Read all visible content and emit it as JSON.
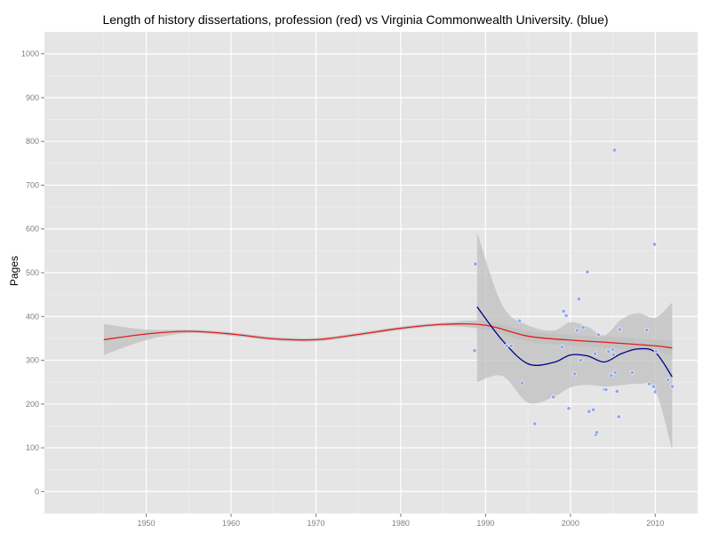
{
  "chart_data": {
    "type": "scatter",
    "title": "Length of history dissertations, profession (red) vs Virginia Commonwealth University. (blue)",
    "xlabel": "",
    "ylabel": "Pages",
    "xlim": [
      1938,
      2015
    ],
    "ylim": [
      -50,
      1050
    ],
    "xticks": [
      1950,
      1960,
      1970,
      1980,
      1990,
      2000,
      2010
    ],
    "yticks": [
      0,
      100,
      200,
      300,
      400,
      500,
      600,
      700,
      800,
      900,
      1000
    ],
    "grid": true,
    "legend": "none",
    "colors": {
      "panel": "#e5e5e5",
      "grid_major": "#ffffff",
      "grid_minor": "#f2f2f2",
      "profession": "#e41a1c",
      "vcu": "#00008b",
      "points": "#8fa8e8",
      "band": "#bfbfbf"
    },
    "series": [
      {
        "color": "#e41a1c",
        "kind": "smooth",
        "x": [
          1945,
          1950,
          1955,
          1960,
          1965,
          1970,
          1975,
          1980,
          1985,
          1990,
          1995,
          2000,
          2005,
          2010,
          2012
        ],
        "y": [
          347,
          360,
          366,
          360,
          349,
          347,
          359,
          373,
          382,
          380,
          355,
          346,
          340,
          333,
          328
        ],
        "band_upper": [
          383,
          370,
          370,
          364,
          353,
          351,
          363,
          377,
          386,
          390,
          367,
          358,
          353,
          347,
          345
        ],
        "band_lower": [
          312,
          346,
          362,
          356,
          345,
          343,
          355,
          369,
          378,
          370,
          343,
          334,
          327,
          319,
          311
        ]
      },
      {
        "color": "#00008b",
        "kind": "smooth",
        "x": [
          1989,
          1992,
          1995,
          1998,
          2000,
          2002,
          2004,
          2006,
          2008,
          2010,
          2012
        ],
        "y": [
          422,
          345,
          292,
          295,
          312,
          310,
          296,
          315,
          326,
          318,
          262
        ],
        "band_upper": [
          592,
          425,
          380,
          368,
          387,
          377,
          357,
          393,
          408,
          397,
          432
        ],
        "band_lower": [
          250,
          264,
          203,
          216,
          238,
          244,
          240,
          243,
          246,
          232,
          95
        ]
      },
      {
        "color": "#8fa8e8",
        "kind": "points",
        "x": [
          1988.7,
          1988.8,
          1992.5,
          1993.0,
          1994.0,
          1994.3,
          1995.8,
          1998.0,
          1999.0,
          1999.2,
          1999.5,
          1999.8,
          2000.5,
          2000.8,
          2001.0,
          2001.2,
          2001.5,
          2002.0,
          2002.2,
          2002.7,
          2002.9,
          2003.0,
          2003.1,
          2003.3,
          2004.0,
          2004.2,
          2004.5,
          2004.8,
          2005.0,
          2005.1,
          2005.2,
          2005.3,
          2005.5,
          2005.7,
          2005.8,
          2007.3,
          2009.0,
          2009.3,
          2009.8,
          2009.9,
          2010.0,
          2010.1,
          2011.5,
          2012.0
        ],
        "y": [
          322,
          520,
          333,
          333,
          390,
          248,
          155,
          216,
          330,
          412,
          402,
          190,
          269,
          368,
          440,
          300,
          375,
          502,
          183,
          187,
          315,
          130,
          135,
          358,
          233,
          233,
          320,
          265,
          325,
          313,
          780,
          272,
          229,
          171,
          370,
          272,
          369,
          246,
          240,
          565,
          228,
          320,
          255,
          240
        ]
      }
    ]
  }
}
